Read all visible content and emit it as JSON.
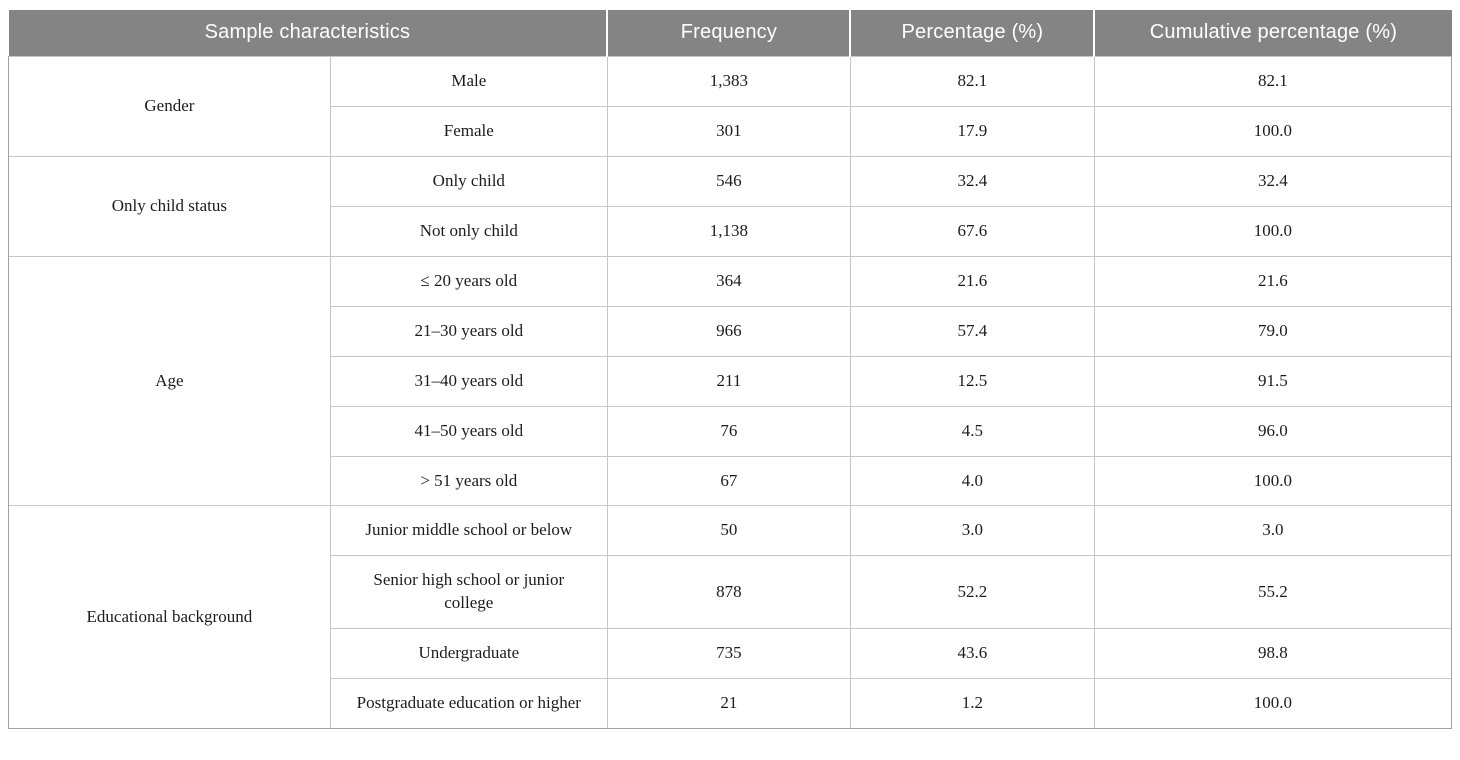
{
  "colors": {
    "header_bg": "#848484",
    "header_text": "#ffffff",
    "body_text": "#1c1c1c",
    "grid_line": "#c6c6c6",
    "outer_border": "#9f9f9f"
  },
  "table": {
    "headers": {
      "sample_characteristics": "Sample characteristics",
      "frequency": "Frequency",
      "percentage": "Percentage (%)",
      "cumulative_percentage": "Cumulative percentage (%)"
    },
    "groups": [
      {
        "label": "Gender",
        "rows": [
          {
            "category": "Male",
            "frequency": "1,383",
            "percentage": "82.1",
            "cumulative": "82.1"
          },
          {
            "category": "Female",
            "frequency": "301",
            "percentage": "17.9",
            "cumulative": "100.0"
          }
        ]
      },
      {
        "label": "Only child status",
        "rows": [
          {
            "category": "Only child",
            "frequency": "546",
            "percentage": "32.4",
            "cumulative": "32.4"
          },
          {
            "category": "Not only child",
            "frequency": "1,138",
            "percentage": "67.6",
            "cumulative": "100.0"
          }
        ]
      },
      {
        "label": "Age",
        "rows": [
          {
            "category": "≤ 20 years old",
            "frequency": "364",
            "percentage": "21.6",
            "cumulative": "21.6"
          },
          {
            "category": "21–30 years old",
            "frequency": "966",
            "percentage": "57.4",
            "cumulative": "79.0"
          },
          {
            "category": "31–40 years old",
            "frequency": "211",
            "percentage": "12.5",
            "cumulative": "91.5"
          },
          {
            "category": "41–50 years old",
            "frequency": "76",
            "percentage": "4.5",
            "cumulative": "96.0"
          },
          {
            "category": "> 51 years old",
            "frequency": "67",
            "percentage": "4.0",
            "cumulative": "100.0"
          }
        ]
      },
      {
        "label": "Educational background",
        "rows": [
          {
            "category": "Junior middle school or below",
            "frequency": "50",
            "percentage": "3.0",
            "cumulative": "3.0"
          },
          {
            "category": "Senior high school or junior college",
            "frequency": "878",
            "percentage": "52.2",
            "cumulative": "55.2"
          },
          {
            "category": "Undergraduate",
            "frequency": "735",
            "percentage": "43.6",
            "cumulative": "98.8"
          },
          {
            "category": "Postgraduate education or higher",
            "frequency": "21",
            "percentage": "1.2",
            "cumulative": "100.0"
          }
        ]
      }
    ]
  }
}
